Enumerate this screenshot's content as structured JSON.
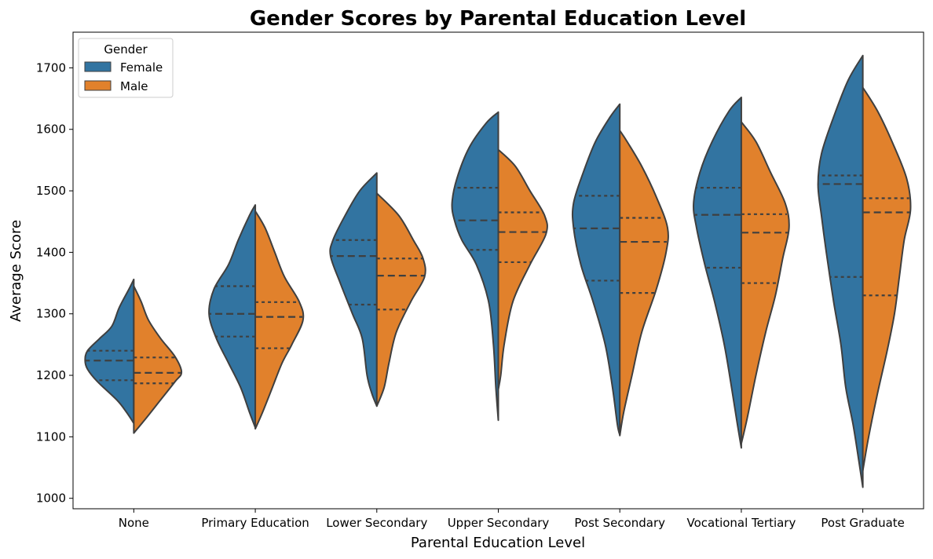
{
  "chart_data": {
    "type": "violin",
    "title": "Gender Scores by Parental Education Level",
    "xlabel": "Parental Education Level",
    "ylabel": "Average Score",
    "ylim": [
      983,
      1758
    ],
    "yticks": [
      1000,
      1100,
      1200,
      1300,
      1400,
      1500,
      1600,
      1700
    ],
    "grid": false,
    "legend": {
      "title": "Gender",
      "position": "top-left"
    },
    "categories": [
      "None",
      "Primary Education",
      "Lower Secondary",
      "Upper Secondary",
      "Post Secondary",
      "Vocational Tertiary",
      "Post Graduate"
    ],
    "series": [
      {
        "name": "Female",
        "color": "#3274a1",
        "groups": [
          {
            "min": 1122,
            "max": 1356,
            "q1": 1192,
            "median": 1224,
            "q3": 1240,
            "profile": [
              [
                1122,
                0.0
              ],
              [
                1140,
                0.15
              ],
              [
                1160,
                0.35
              ],
              [
                1190,
                0.75
              ],
              [
                1210,
                0.95
              ],
              [
                1224,
                1.0
              ],
              [
                1240,
                0.95
              ],
              [
                1260,
                0.7
              ],
              [
                1280,
                0.45
              ],
              [
                1310,
                0.3
              ],
              [
                1340,
                0.1
              ],
              [
                1356,
                0.0
              ]
            ]
          },
          {
            "min": 1115,
            "max": 1477,
            "q1": 1263,
            "median": 1300,
            "q3": 1345,
            "profile": [
              [
                1115,
                0.0
              ],
              [
                1140,
                0.12
              ],
              [
                1180,
                0.3
              ],
              [
                1220,
                0.55
              ],
              [
                1260,
                0.8
              ],
              [
                1300,
                0.95
              ],
              [
                1340,
                0.85
              ],
              [
                1380,
                0.55
              ],
              [
                1420,
                0.35
              ],
              [
                1460,
                0.12
              ],
              [
                1477,
                0.0
              ]
            ]
          },
          {
            "min": 1150,
            "max": 1529,
            "q1": 1315,
            "median": 1394,
            "q3": 1420,
            "profile": [
              [
                1150,
                0.0
              ],
              [
                1170,
                0.1
              ],
              [
                1200,
                0.2
              ],
              [
                1260,
                0.3
              ],
              [
                1300,
                0.5
              ],
              [
                1350,
                0.75
              ],
              [
                1394,
                0.95
              ],
              [
                1420,
                0.9
              ],
              [
                1460,
                0.65
              ],
              [
                1500,
                0.35
              ],
              [
                1529,
                0.0
              ]
            ]
          },
          {
            "min": 1127,
            "max": 1628,
            "q1": 1404,
            "median": 1452,
            "q3": 1505,
            "profile": [
              [
                1127,
                0.0
              ],
              [
                1180,
                0.05
              ],
              [
                1250,
                0.1
              ],
              [
                1320,
                0.2
              ],
              [
                1380,
                0.45
              ],
              [
                1420,
                0.75
              ],
              [
                1452,
                0.9
              ],
              [
                1480,
                0.95
              ],
              [
                1520,
                0.85
              ],
              [
                1570,
                0.6
              ],
              [
                1610,
                0.25
              ],
              [
                1628,
                0.0
              ]
            ]
          },
          {
            "min": 1103,
            "max": 1641,
            "q1": 1354,
            "median": 1439,
            "q3": 1492,
            "profile": [
              [
                1103,
                0.0
              ],
              [
                1120,
                0.05
              ],
              [
                1180,
                0.15
              ],
              [
                1250,
                0.3
              ],
              [
                1320,
                0.55
              ],
              [
                1380,
                0.8
              ],
              [
                1440,
                0.95
              ],
              [
                1480,
                0.95
              ],
              [
                1530,
                0.75
              ],
              [
                1580,
                0.5
              ],
              [
                1620,
                0.2
              ],
              [
                1641,
                0.0
              ]
            ]
          },
          {
            "min": 1082,
            "max": 1652,
            "q1": 1375,
            "median": 1461,
            "q3": 1505,
            "profile": [
              [
                1082,
                0.0
              ],
              [
                1120,
                0.08
              ],
              [
                1180,
                0.2
              ],
              [
                1250,
                0.35
              ],
              [
                1320,
                0.55
              ],
              [
                1380,
                0.75
              ],
              [
                1440,
                0.92
              ],
              [
                1480,
                0.98
              ],
              [
                1530,
                0.85
              ],
              [
                1580,
                0.6
              ],
              [
                1630,
                0.25
              ],
              [
                1652,
                0.0
              ]
            ]
          },
          {
            "min": 1018,
            "max": 1720,
            "q1": 1360,
            "median": 1511,
            "q3": 1525,
            "profile": [
              [
                1018,
                0.0
              ],
              [
                1060,
                0.08
              ],
              [
                1120,
                0.2
              ],
              [
                1180,
                0.35
              ],
              [
                1250,
                0.45
              ],
              [
                1320,
                0.6
              ],
              [
                1400,
                0.75
              ],
              [
                1460,
                0.85
              ],
              [
                1510,
                0.92
              ],
              [
                1560,
                0.85
              ],
              [
                1620,
                0.6
              ],
              [
                1680,
                0.3
              ],
              [
                1720,
                0.0
              ]
            ]
          }
        ]
      },
      {
        "name": "Male",
        "color": "#e1812c",
        "groups": [
          {
            "min": 1106,
            "max": 1345,
            "q1": 1187,
            "median": 1204,
            "q3": 1229,
            "profile": [
              [
                1106,
                0.0
              ],
              [
                1130,
                0.25
              ],
              [
                1160,
                0.55
              ],
              [
                1190,
                0.85
              ],
              [
                1205,
                0.98
              ],
              [
                1230,
                0.85
              ],
              [
                1260,
                0.55
              ],
              [
                1290,
                0.3
              ],
              [
                1320,
                0.15
              ],
              [
                1345,
                0.0
              ]
            ]
          },
          {
            "min": 1113,
            "max": 1467,
            "q1": 1244,
            "median": 1295,
            "q3": 1319,
            "profile": [
              [
                1113,
                0.0
              ],
              [
                1140,
                0.15
              ],
              [
                1180,
                0.35
              ],
              [
                1220,
                0.55
              ],
              [
                1250,
                0.75
              ],
              [
                1290,
                0.98
              ],
              [
                1320,
                0.9
              ],
              [
                1360,
                0.6
              ],
              [
                1400,
                0.4
              ],
              [
                1440,
                0.2
              ],
              [
                1467,
                0.0
              ]
            ]
          },
          {
            "min": 1150,
            "max": 1496,
            "q1": 1307,
            "median": 1362,
            "q3": 1390,
            "profile": [
              [
                1150,
                0.0
              ],
              [
                1180,
                0.15
              ],
              [
                1220,
                0.25
              ],
              [
                1270,
                0.4
              ],
              [
                1320,
                0.7
              ],
              [
                1360,
                0.98
              ],
              [
                1390,
                0.95
              ],
              [
                1420,
                0.75
              ],
              [
                1460,
                0.45
              ],
              [
                1496,
                0.0
              ]
            ]
          },
          {
            "min": 1177,
            "max": 1567,
            "q1": 1384,
            "median": 1433,
            "q3": 1465,
            "profile": [
              [
                1177,
                0.0
              ],
              [
                1200,
                0.05
              ],
              [
                1250,
                0.12
              ],
              [
                1320,
                0.3
              ],
              [
                1380,
                0.65
              ],
              [
                1430,
                0.98
              ],
              [
                1460,
                0.95
              ],
              [
                1500,
                0.65
              ],
              [
                1540,
                0.35
              ],
              [
                1567,
                0.0
              ]
            ]
          },
          {
            "min": 1102,
            "max": 1598,
            "q1": 1334,
            "median": 1417,
            "q3": 1456,
            "profile": [
              [
                1102,
                0.0
              ],
              [
                1140,
                0.08
              ],
              [
                1200,
                0.25
              ],
              [
                1270,
                0.45
              ],
              [
                1340,
                0.75
              ],
              [
                1400,
                0.95
              ],
              [
                1440,
                0.98
              ],
              [
                1490,
                0.75
              ],
              [
                1540,
                0.45
              ],
              [
                1580,
                0.15
              ],
              [
                1598,
                0.0
              ]
            ]
          },
          {
            "min": 1089,
            "max": 1612,
            "q1": 1350,
            "median": 1432,
            "q3": 1462,
            "profile": [
              [
                1089,
                0.0
              ],
              [
                1130,
                0.12
              ],
              [
                1200,
                0.3
              ],
              [
                1270,
                0.5
              ],
              [
                1330,
                0.7
              ],
              [
                1390,
                0.85
              ],
              [
                1440,
                0.98
              ],
              [
                1480,
                0.9
              ],
              [
                1530,
                0.6
              ],
              [
                1580,
                0.3
              ],
              [
                1612,
                0.0
              ]
            ]
          },
          {
            "min": 1045,
            "max": 1668,
            "q1": 1330,
            "median": 1465,
            "q3": 1488,
            "profile": [
              [
                1045,
                0.0
              ],
              [
                1100,
                0.12
              ],
              [
                1170,
                0.3
              ],
              [
                1240,
                0.5
              ],
              [
                1300,
                0.65
              ],
              [
                1360,
                0.75
              ],
              [
                1420,
                0.85
              ],
              [
                1470,
                0.98
              ],
              [
                1520,
                0.9
              ],
              [
                1580,
                0.6
              ],
              [
                1630,
                0.3
              ],
              [
                1668,
                0.0
              ]
            ]
          }
        ]
      }
    ]
  }
}
